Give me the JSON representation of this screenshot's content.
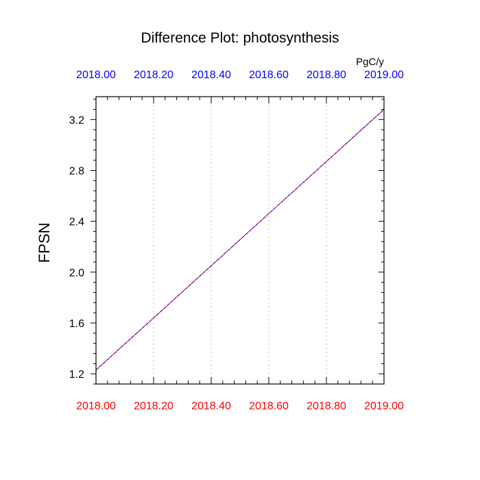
{
  "chart_data": {
    "type": "line",
    "title": "Difference Plot: photosynthesis",
    "units": "PgC/y",
    "ylabel": "FPSN",
    "xlim": [
      2018.0,
      2019.0
    ],
    "ylim": [
      1.12,
      3.38
    ],
    "x_ticks_bottom": [
      "2018.00",
      "2018.20",
      "2018.40",
      "2018.60",
      "2018.80",
      "2019.00"
    ],
    "x_ticks_top": [
      "2018.00",
      "2018.20",
      "2018.40",
      "2018.60",
      "2018.80",
      "2019.00"
    ],
    "x_tick_values": [
      2018.0,
      2018.2,
      2018.4,
      2018.6,
      2018.8,
      2019.0
    ],
    "y_ticks": [
      "1.2",
      "1.6",
      "2.0",
      "2.4",
      "2.8",
      "3.2"
    ],
    "y_tick_values": [
      1.2,
      1.6,
      2.0,
      2.4,
      2.8,
      3.2
    ],
    "grid": "vertical dotted",
    "series": [
      {
        "x": [
          2018.0,
          2019.0
        ],
        "values": [
          1.23,
          3.28
        ],
        "color": "#ff0000",
        "style": "solid"
      },
      {
        "x": [
          2018.0,
          2019.0
        ],
        "values": [
          1.23,
          3.28
        ],
        "color": "#0000ff",
        "style": "dashed"
      }
    ],
    "colors": {
      "bottom_axis": "#ff0000",
      "top_axis": "#0000ff",
      "frame": "#000000"
    }
  }
}
